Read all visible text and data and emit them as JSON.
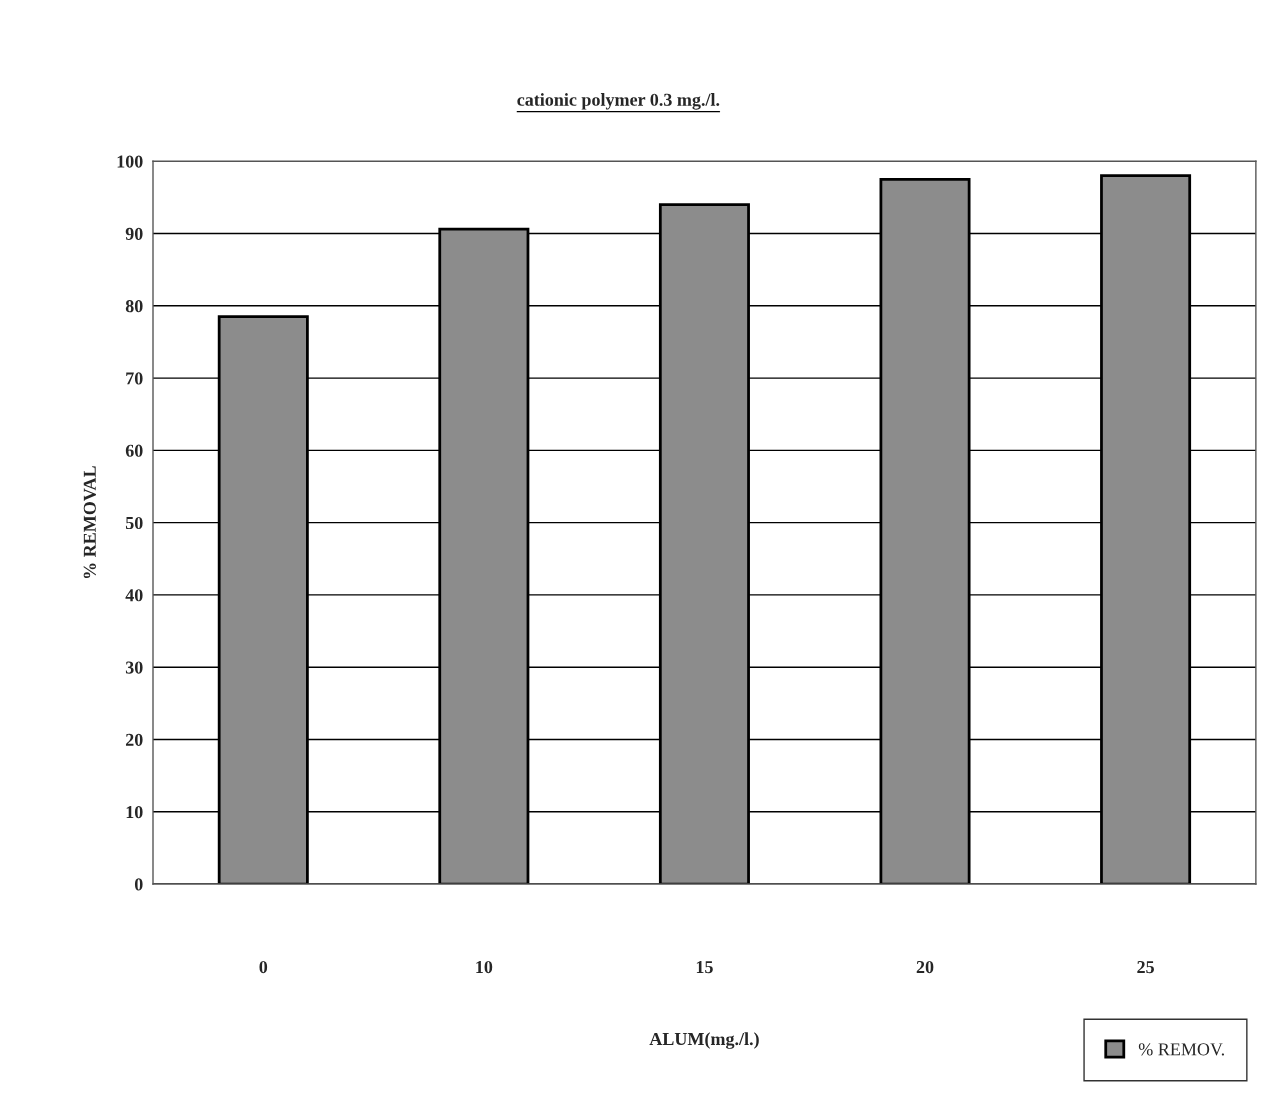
{
  "chart_data": {
    "type": "bar",
    "title": "cationic polymer 0.3 mg./l.",
    "xlabel": "ALUM(mg./l.)",
    "ylabel": "% REMOVAL",
    "categories": [
      "0",
      "10",
      "15",
      "20",
      "25"
    ],
    "series": [
      {
        "name": "% REMOV.",
        "color": "#8c8c8c",
        "values": [
          78.5,
          90.6,
          94,
          97.5,
          98
        ]
      }
    ],
    "ylim": [
      0,
      100
    ],
    "yticks": [
      0,
      10,
      20,
      30,
      40,
      50,
      60,
      70,
      80,
      90,
      100
    ],
    "grid": "y",
    "legend": "bottom right"
  }
}
